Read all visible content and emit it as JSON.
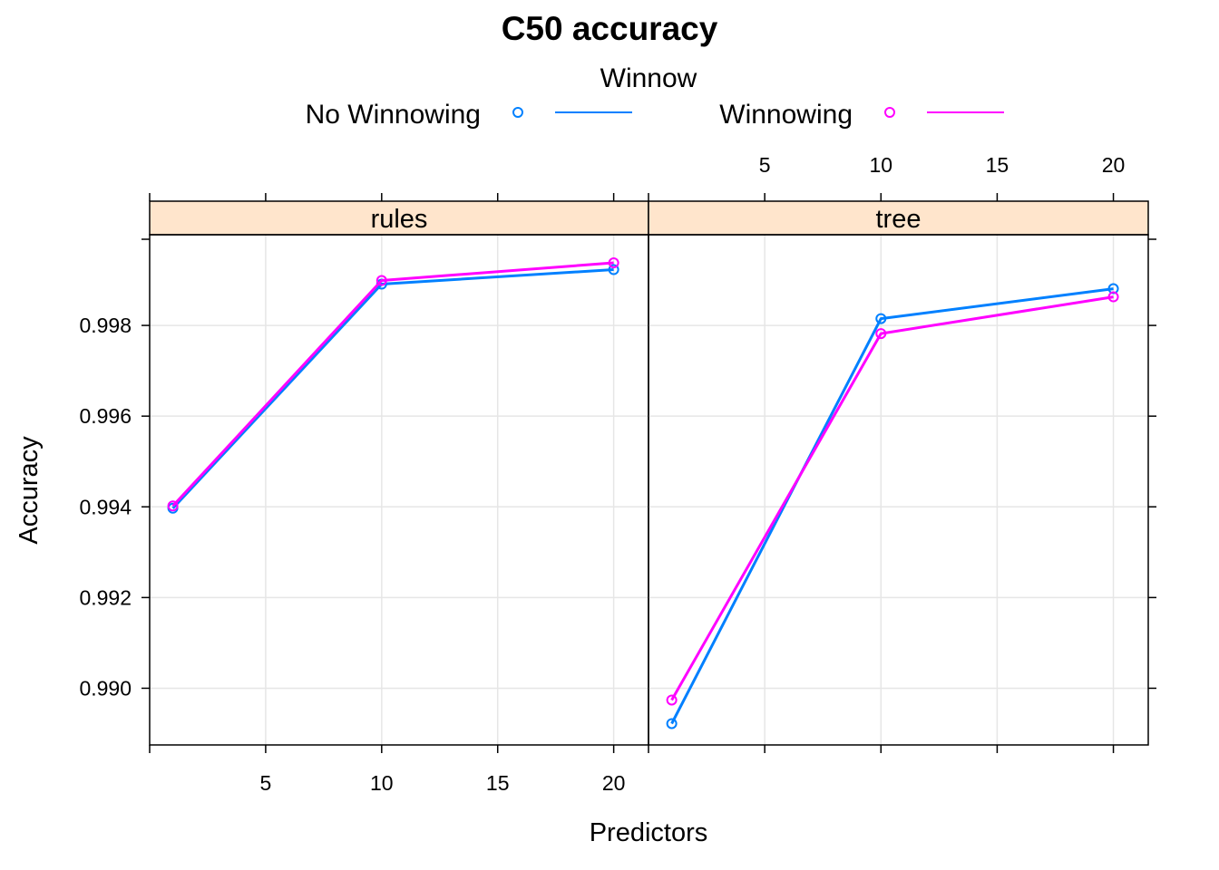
{
  "chart_data": {
    "type": "line",
    "title": "C50 accuracy",
    "xlabel": "Predictors",
    "ylabel": "Accuracy",
    "xlim": [
      0,
      21.5
    ],
    "ylim": [
      0.98875,
      1.0
    ],
    "x_ticks": [
      5,
      10,
      15,
      20
    ],
    "y_ticks": [
      0.99,
      0.992,
      0.994,
      0.996,
      0.998
    ],
    "y_tick_labels": [
      "0.990",
      "0.992",
      "0.994",
      "0.996",
      "0.998"
    ],
    "grid": true,
    "legend": {
      "title": "Winnow",
      "position": "top",
      "entries": [
        {
          "name": "No Winnowing",
          "color": "#0080ff"
        },
        {
          "name": "Winnowing",
          "color": "#ff00ff"
        }
      ]
    },
    "strip_color": "#ffe5cc",
    "panels": [
      {
        "name": "rules",
        "series": [
          {
            "name": "No Winnowing",
            "x": [
              1,
              10,
              20
            ],
            "y": [
              0.99397,
              0.99891,
              0.99923
            ],
            "color": "#0080ff"
          },
          {
            "name": "Winnowing",
            "x": [
              1,
              10,
              20
            ],
            "y": [
              0.99402,
              0.99899,
              0.99938
            ],
            "color": "#ff00ff"
          }
        ]
      },
      {
        "name": "tree",
        "series": [
          {
            "name": "No Winnowing",
            "x": [
              1,
              10,
              20
            ],
            "y": [
              0.98922,
              0.99815,
              0.99881
            ],
            "color": "#0080ff"
          },
          {
            "name": "Winnowing",
            "x": [
              1,
              10,
              20
            ],
            "y": [
              0.98974,
              0.99782,
              0.99863
            ],
            "color": "#ff00ff"
          }
        ]
      }
    ]
  }
}
